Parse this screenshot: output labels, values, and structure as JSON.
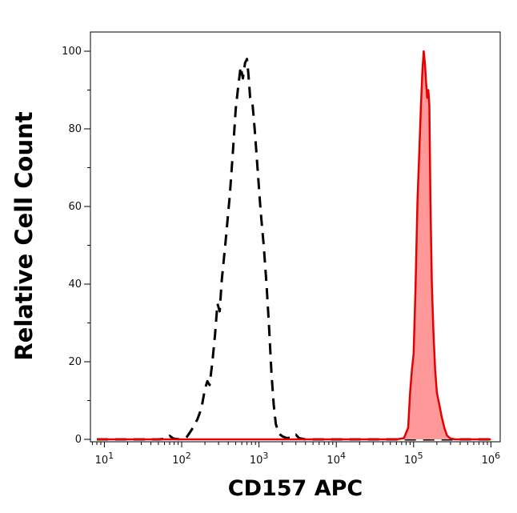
{
  "chart_data": {
    "type": "area",
    "xlabel": "CD157 APC",
    "ylabel": "Relative Cell Count",
    "x_scale": "log",
    "xlim": [
      10,
      1000000
    ],
    "ylim": [
      0,
      105
    ],
    "grid": false,
    "legend": "none",
    "x_ticks": [
      {
        "base": "10",
        "exp": "1",
        "value": 10
      },
      {
        "base": "10",
        "exp": "2",
        "value": 100
      },
      {
        "base": "10",
        "exp": "3",
        "value": 1000
      },
      {
        "base": "10",
        "exp": "4",
        "value": 10000
      },
      {
        "base": "10",
        "exp": "5",
        "value": 100000
      },
      {
        "base": "10",
        "exp": "6",
        "value": 1000000
      }
    ],
    "y_ticks": [
      {
        "label": "0",
        "value": 0
      },
      {
        "label": "20",
        "value": 20
      },
      {
        "label": "40",
        "value": 40
      },
      {
        "label": "60",
        "value": 60
      },
      {
        "label": "80",
        "value": 80
      },
      {
        "label": "100",
        "value": 100
      }
    ],
    "series": [
      {
        "style": "dashed",
        "color": "#000000",
        "fill": "none",
        "points": [
          [
            8,
            0
          ],
          [
            50,
            0
          ],
          [
            65,
            0.2
          ],
          [
            70,
            0.9
          ],
          [
            78,
            0.2
          ],
          [
            95,
            0
          ],
          [
            115,
            0.5
          ],
          [
            125,
            1.5
          ],
          [
            140,
            3
          ],
          [
            160,
            5.2
          ],
          [
            180,
            8
          ],
          [
            200,
            13
          ],
          [
            215,
            15
          ],
          [
            230,
            14
          ],
          [
            250,
            20
          ],
          [
            270,
            27
          ],
          [
            290,
            35
          ],
          [
            310,
            33
          ],
          [
            330,
            41
          ],
          [
            370,
            51
          ],
          [
            420,
            63
          ],
          [
            460,
            74
          ],
          [
            500,
            85
          ],
          [
            540,
            91
          ],
          [
            580,
            96
          ],
          [
            620,
            93
          ],
          [
            660,
            97
          ],
          [
            700,
            98
          ],
          [
            730,
            94
          ],
          [
            770,
            88
          ],
          [
            820,
            87
          ],
          [
            880,
            80
          ],
          [
            950,
            71
          ],
          [
            1050,
            59
          ],
          [
            1150,
            50
          ],
          [
            1250,
            40
          ],
          [
            1350,
            29
          ],
          [
            1450,
            17
          ],
          [
            1550,
            9
          ],
          [
            1650,
            4
          ],
          [
            1800,
            1.5
          ],
          [
            2000,
            0.8
          ],
          [
            2300,
            0.3
          ],
          [
            2800,
            0.6
          ],
          [
            3000,
            1.2
          ],
          [
            3300,
            0.3
          ],
          [
            4000,
            0
          ],
          [
            1000000,
            0
          ]
        ]
      },
      {
        "style": "solid",
        "color": "#e60000",
        "fill": "#ff9999",
        "points": [
          [
            8,
            0
          ],
          [
            60000,
            0
          ],
          [
            75000,
            0.3
          ],
          [
            85000,
            3
          ],
          [
            90000,
            12
          ],
          [
            95000,
            18
          ],
          [
            100000,
            22
          ],
          [
            106000,
            39
          ],
          [
            112000,
            61
          ],
          [
            118000,
            73
          ],
          [
            124000,
            85
          ],
          [
            130000,
            95
          ],
          [
            135000,
            100
          ],
          [
            140000,
            97
          ],
          [
            145000,
            92
          ],
          [
            150000,
            88
          ],
          [
            155000,
            90
          ],
          [
            160000,
            86
          ],
          [
            165000,
            62
          ],
          [
            172000,
            40
          ],
          [
            180000,
            28
          ],
          [
            190000,
            18
          ],
          [
            200000,
            12
          ],
          [
            215000,
            9
          ],
          [
            230000,
            6
          ],
          [
            250000,
            3
          ],
          [
            270000,
            1
          ],
          [
            300000,
            0.2
          ],
          [
            350000,
            0
          ],
          [
            1000000,
            0
          ]
        ]
      }
    ]
  }
}
